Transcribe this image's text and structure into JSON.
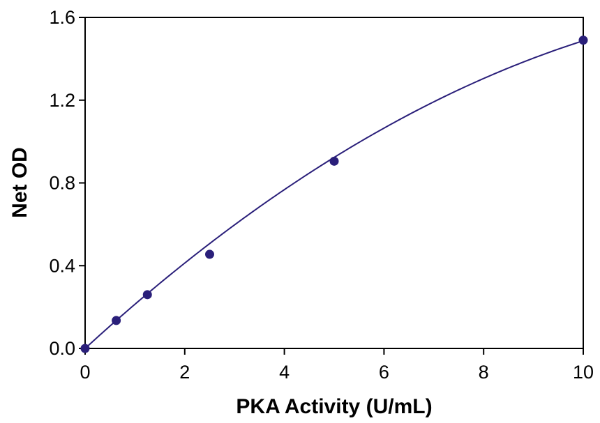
{
  "chart_data": {
    "type": "scatter",
    "xlabel": "PKA Activity (U/mL)",
    "ylabel": "Net OD",
    "xlim": [
      0,
      10
    ],
    "ylim": [
      0,
      1.6
    ],
    "x_ticks": [
      "0",
      "2",
      "4",
      "6",
      "8",
      "10"
    ],
    "y_ticks": [
      "0.0",
      "0.4",
      "0.8",
      "1.2",
      "1.6"
    ],
    "grid": false,
    "legend": "none",
    "series": [
      {
        "x": [
          0,
          0.625,
          1.25,
          2.5,
          5,
          10
        ],
        "y": [
          0.0,
          0.135,
          0.26,
          0.455,
          0.905,
          1.49
        ],
        "fit": "polynomial",
        "fit_coefficients": [
          0,
          0.2207,
          -0.0072
        ],
        "color": "#2a1f7a"
      }
    ]
  }
}
